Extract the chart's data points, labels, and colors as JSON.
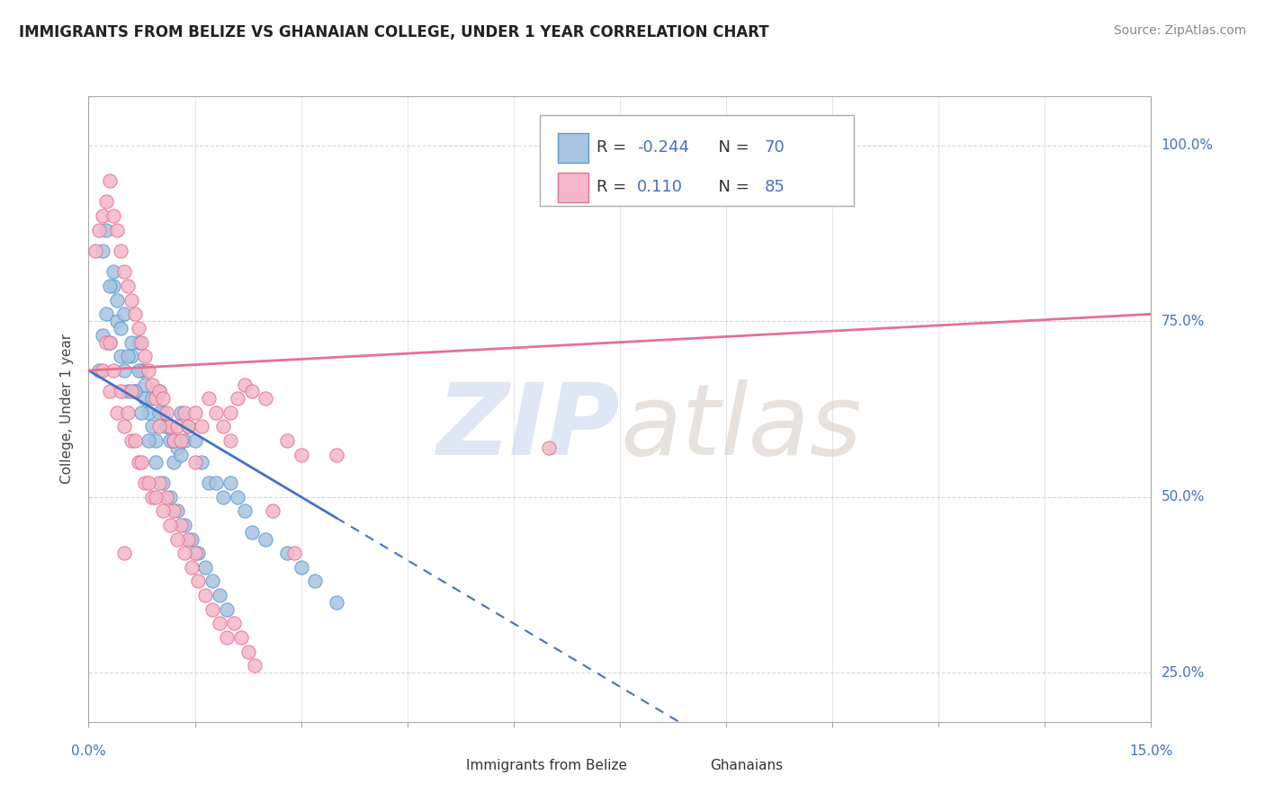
{
  "title": "IMMIGRANTS FROM BELIZE VS GHANAIAN COLLEGE, UNDER 1 YEAR CORRELATION CHART",
  "source": "Source: ZipAtlas.com",
  "ylabel_label": "College, Under 1 year",
  "legend1_label": "Immigrants from Belize",
  "legend2_label": "Ghanaians",
  "xmin": 0.0,
  "xmax": 15.0,
  "ymin": 18.0,
  "ymax": 107.0,
  "yticks": [
    25,
    50,
    75,
    100
  ],
  "R1": -0.244,
  "N1": 70,
  "R2": 0.11,
  "N2": 85,
  "blue_fill": "#a8c4e0",
  "blue_edge": "#5b9bd5",
  "pink_fill": "#f4b8c8",
  "pink_edge": "#e87090",
  "blue_line": "#4472c4",
  "pink_line": "#e87090",
  "tick_color": "#4472c4",
  "grid_color": "#cccccc",
  "blue_points_x": [
    0.15,
    0.2,
    0.25,
    0.3,
    0.35,
    0.4,
    0.45,
    0.5,
    0.55,
    0.6,
    0.65,
    0.7,
    0.75,
    0.8,
    0.85,
    0.9,
    0.95,
    1.0,
    1.05,
    1.1,
    1.15,
    1.2,
    1.25,
    1.3,
    1.35,
    1.4,
    1.5,
    1.6,
    1.7,
    1.8,
    1.9,
    2.0,
    2.1,
    2.2,
    2.3,
    2.5,
    2.8,
    3.0,
    3.2,
    3.5,
    0.2,
    0.3,
    0.4,
    0.5,
    0.6,
    0.7,
    0.8,
    0.9,
    1.0,
    1.1,
    1.2,
    1.3,
    0.25,
    0.35,
    0.45,
    0.55,
    0.65,
    0.75,
    0.85,
    0.95,
    1.05,
    1.15,
    1.25,
    1.35,
    1.45,
    1.55,
    1.65,
    1.75,
    1.85,
    1.95
  ],
  "blue_points_y": [
    68,
    73,
    76,
    72,
    80,
    75,
    70,
    68,
    65,
    70,
    65,
    72,
    68,
    64,
    62,
    60,
    58,
    65,
    62,
    60,
    58,
    55,
    57,
    62,
    58,
    60,
    58,
    55,
    52,
    52,
    50,
    52,
    50,
    48,
    45,
    44,
    42,
    40,
    38,
    35,
    85,
    80,
    78,
    76,
    72,
    68,
    66,
    64,
    62,
    60,
    58,
    56,
    88,
    82,
    74,
    70,
    65,
    62,
    58,
    55,
    52,
    50,
    48,
    46,
    44,
    42,
    40,
    38,
    36,
    34
  ],
  "pink_points_x": [
    0.1,
    0.15,
    0.2,
    0.25,
    0.3,
    0.35,
    0.4,
    0.45,
    0.5,
    0.55,
    0.6,
    0.65,
    0.7,
    0.75,
    0.8,
    0.85,
    0.9,
    0.95,
    1.0,
    1.05,
    1.1,
    1.15,
    1.2,
    1.25,
    1.3,
    1.35,
    1.4,
    1.5,
    1.6,
    1.7,
    1.8,
    1.9,
    2.0,
    2.1,
    2.2,
    2.3,
    2.5,
    2.8,
    3.0,
    3.5,
    0.2,
    0.3,
    0.4,
    0.5,
    0.6,
    0.7,
    0.8,
    0.9,
    1.0,
    1.1,
    1.2,
    1.3,
    1.4,
    1.5,
    0.25,
    0.35,
    0.45,
    0.55,
    0.65,
    0.75,
    0.85,
    0.95,
    1.05,
    1.15,
    1.25,
    1.35,
    1.45,
    1.55,
    1.65,
    1.75,
    1.85,
    1.95,
    2.05,
    2.15,
    2.25,
    2.35,
    2.6,
    2.9,
    0.5,
    6.5,
    0.3,
    0.6,
    1.0,
    1.5,
    2.0
  ],
  "pink_points_y": [
    85,
    88,
    90,
    92,
    95,
    90,
    88,
    85,
    82,
    80,
    78,
    76,
    74,
    72,
    70,
    68,
    66,
    64,
    65,
    64,
    62,
    60,
    58,
    60,
    58,
    62,
    60,
    62,
    60,
    64,
    62,
    60,
    62,
    64,
    66,
    65,
    64,
    58,
    56,
    56,
    68,
    65,
    62,
    60,
    58,
    55,
    52,
    50,
    52,
    50,
    48,
    46,
    44,
    42,
    72,
    68,
    65,
    62,
    58,
    55,
    52,
    50,
    48,
    46,
    44,
    42,
    40,
    38,
    36,
    34,
    32,
    30,
    32,
    30,
    28,
    26,
    48,
    42,
    42,
    57,
    72,
    65,
    60,
    55,
    58
  ]
}
